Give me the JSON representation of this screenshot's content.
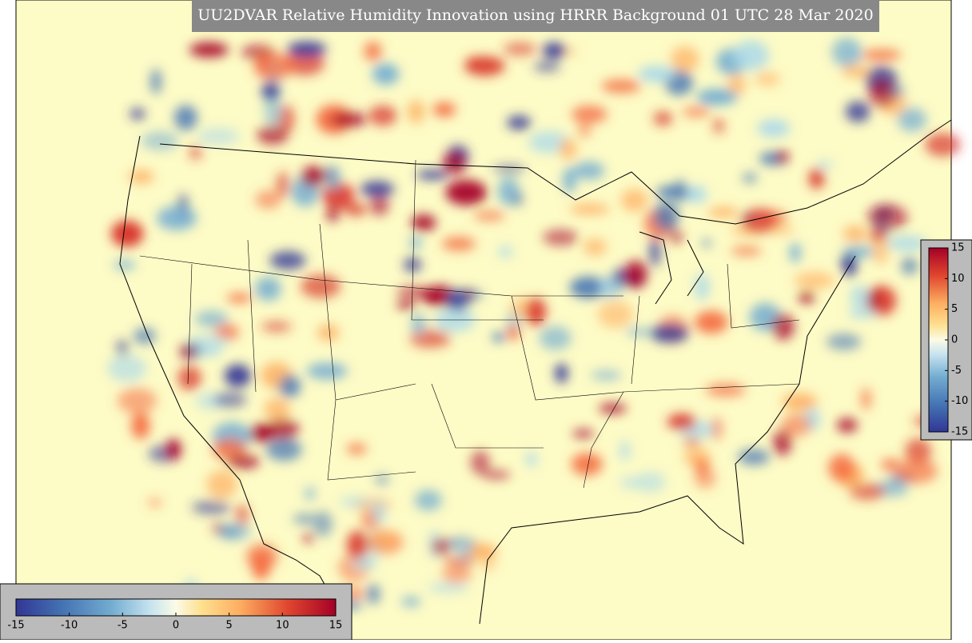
{
  "title": "UU2DVAR Relative Humidity Innovation using HRRR Background 01 UTC 28 Mar 2020",
  "colorbar_horizontal": {
    "ticks": [
      -15,
      -10,
      -5,
      0,
      5,
      10,
      15
    ]
  },
  "colorbar_vertical": {
    "ticks": [
      15,
      10,
      5,
      0,
      -5,
      -10,
      -15
    ]
  }
}
